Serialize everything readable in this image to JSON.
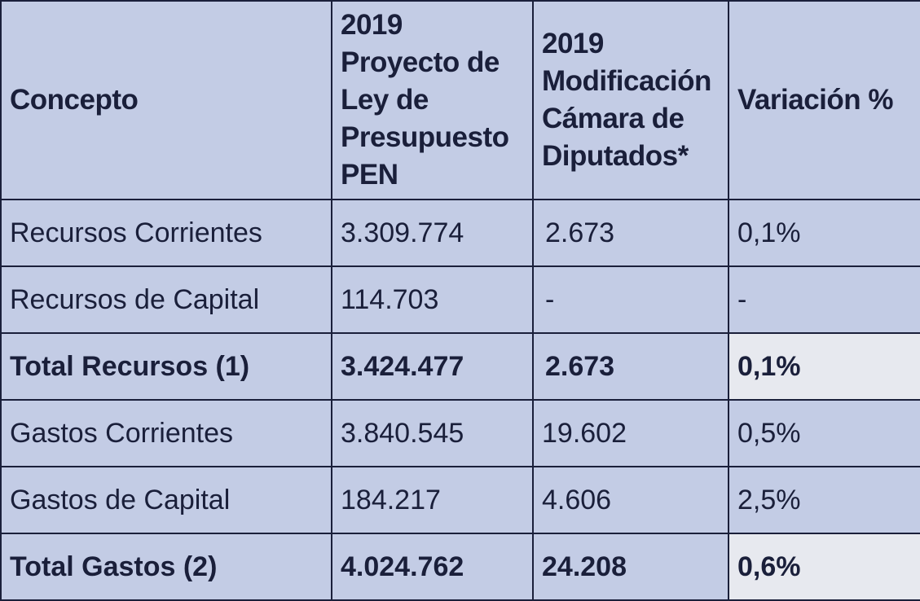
{
  "table": {
    "headers": [
      "Concepto",
      "2019 Proyecto de Ley de Presupuesto PEN",
      "2019 Modificación Cámara de Diputados*",
      "Variación %"
    ],
    "rows": [
      {
        "concepto": "Recursos Corrientes",
        "proyecto": "3.309.774",
        "modificacion": "2.673",
        "variacion": "0,1%"
      },
      {
        "concepto": "Recursos de Capital",
        "proyecto": "114.703",
        "modificacion": "-",
        "variacion": "-"
      },
      {
        "concepto": "Total Recursos (1)",
        "proyecto": "3.424.477",
        "modificacion": "2.673",
        "variacion": "0,1%"
      },
      {
        "concepto": "Gastos Corrientes",
        "proyecto": "3.840.545",
        "modificacion": "19.602",
        "variacion": "0,5%"
      },
      {
        "concepto": "Gastos de Capital",
        "proyecto": "184.217",
        "modificacion": "4.606",
        "variacion": "2,5%"
      },
      {
        "concepto": "Total Gastos (2)",
        "proyecto": "4.024.762",
        "modificacion": "24.208",
        "variacion": "0,6%"
      }
    ]
  },
  "colors": {
    "cell_background": "#c3cce5",
    "highlight_background": "#e7e9ef",
    "border": "#1a1f3a",
    "text": "#1a1f3a"
  }
}
